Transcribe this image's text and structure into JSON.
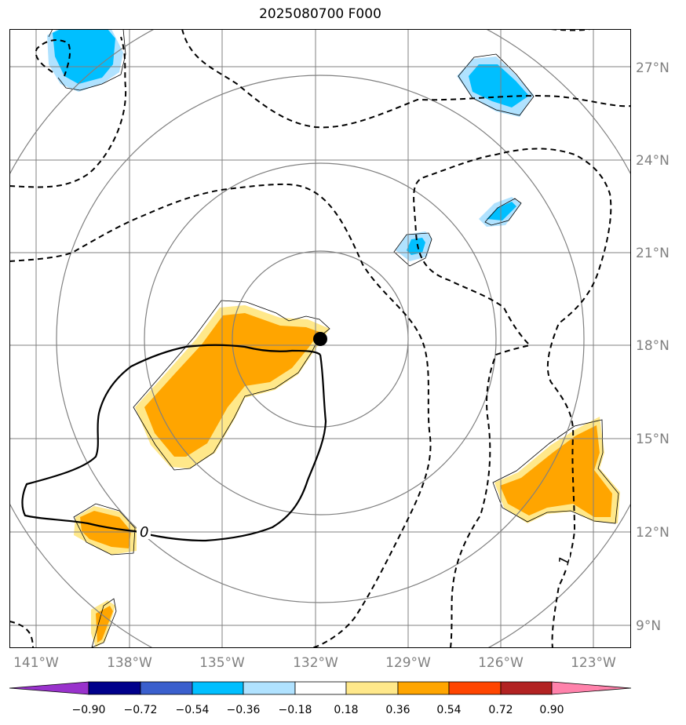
{
  "title": "2025080700 F000",
  "axes": {
    "lon_ticks": [
      "141°W",
      "138°W",
      "135°W",
      "132°W",
      "129°W",
      "126°W",
      "123°W"
    ],
    "lat_ticks": [
      "27°N",
      "24°N",
      "21°N",
      "18°N",
      "15°N",
      "12°N",
      "9°N"
    ]
  },
  "contour_labels": [
    "0",
    "1"
  ],
  "colorbar": {
    "labels": [
      "−0.90",
      "−0.72",
      "−0.54",
      "−0.36",
      "−0.18",
      "0.18",
      "0.36",
      "0.54",
      "0.72",
      "0.90"
    ],
    "colors": [
      "#9932cc",
      "#00008b",
      "#3a5fcd",
      "#00bfff",
      "#b0e2ff",
      "#ffffff",
      "#ffe88a",
      "#ffa500",
      "#ff4500",
      "#b22222",
      "#ff82ab"
    ]
  },
  "colors": {
    "positive_fill": "#ffa500",
    "positive_halo": "#ffe88a",
    "negative_fill": "#00bfff",
    "negative_halo": "#b0e2ff",
    "grid": "#808080",
    "center_marker": "#000000"
  }
}
